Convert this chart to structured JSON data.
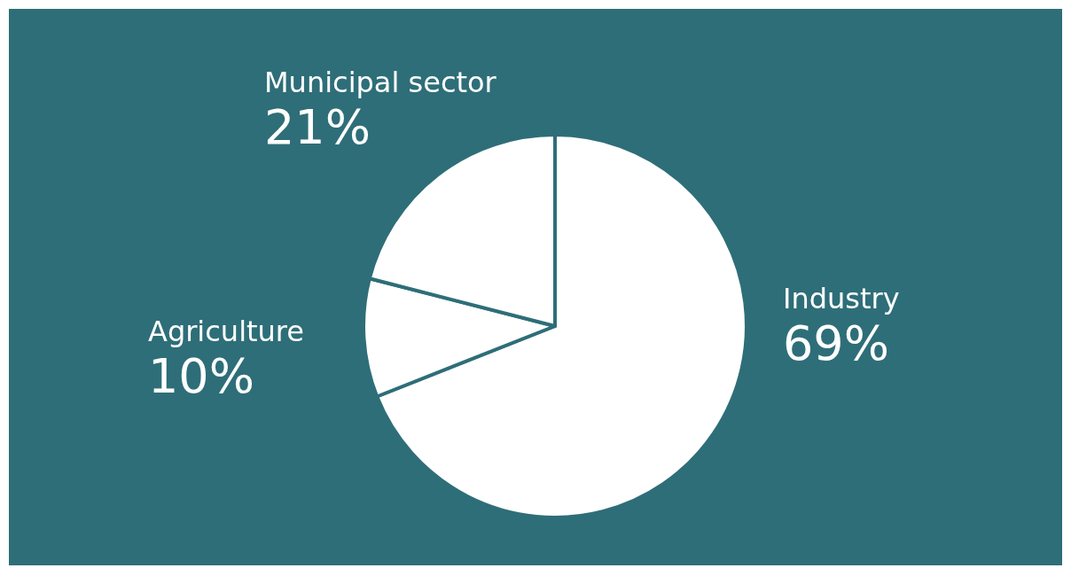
{
  "chart_data": {
    "type": "pie",
    "categories": [
      "Industry",
      "Agriculture",
      "Municipal sector"
    ],
    "values": [
      69,
      10,
      21
    ],
    "colors": [
      "#ffffff",
      "#ffffff",
      "#ffffff"
    ],
    "value_labels": [
      "69%",
      "10%",
      "21%"
    ]
  }
}
